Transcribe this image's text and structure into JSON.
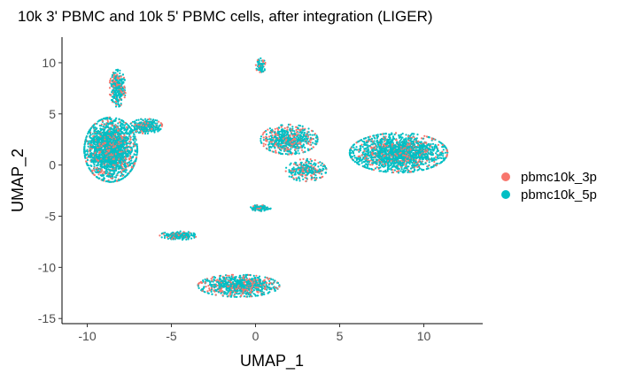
{
  "chart_data": {
    "type": "scatter",
    "title": "10k 3' PBMC and 10k 5' PBMC cells, after integration (LIGER)",
    "xlabel": "UMAP_1",
    "ylabel": "UMAP_2",
    "xlim": [
      -11.5,
      13.5
    ],
    "ylim": [
      -15.5,
      12.5
    ],
    "xticks": [
      -10,
      -5,
      0,
      5,
      10
    ],
    "yticks": [
      -15,
      -10,
      -5,
      0,
      5,
      10
    ],
    "grid": false,
    "legend_position": "right",
    "series": [
      {
        "name": "pbmc10k_3p",
        "color": "#F8766D"
      },
      {
        "name": "pbmc10k_5p",
        "color": "#00BFC4"
      }
    ],
    "clusters": [
      {
        "label": "large-left",
        "center": [
          -8.6,
          1.5
        ],
        "spread": [
          1.3,
          2.6
        ],
        "weight": 0.3,
        "share_3p": 0.2
      },
      {
        "label": "left-top-arm",
        "center": [
          -8.2,
          7.5
        ],
        "spread": [
          0.4,
          1.5
        ],
        "weight": 0.04,
        "share_3p": 0.3
      },
      {
        "label": "left-shoulder",
        "center": [
          -6.5,
          3.8
        ],
        "spread": [
          0.8,
          0.6
        ],
        "weight": 0.04,
        "share_3p": 0.2
      },
      {
        "label": "center-mid",
        "center": [
          2.0,
          2.5
        ],
        "spread": [
          1.4,
          1.2
        ],
        "weight": 0.09,
        "share_3p": 0.3
      },
      {
        "label": "center-lower",
        "center": [
          3.0,
          -0.5
        ],
        "spread": [
          1.0,
          0.9
        ],
        "weight": 0.04,
        "share_3p": 0.3
      },
      {
        "label": "right-main",
        "center": [
          8.5,
          1.2
        ],
        "spread": [
          2.4,
          1.6
        ],
        "weight": 0.26,
        "share_3p": 0.2
      },
      {
        "label": "small-island",
        "center": [
          0.3,
          -4.2
        ],
        "spread": [
          0.5,
          0.25
        ],
        "weight": 0.02,
        "share_3p": 0.2
      },
      {
        "label": "left-bottom",
        "center": [
          -4.6,
          -6.9
        ],
        "spread": [
          0.9,
          0.35
        ],
        "weight": 0.03,
        "share_3p": 0.2
      },
      {
        "label": "bottom",
        "center": [
          -1.0,
          -11.8
        ],
        "spread": [
          2.0,
          0.9
        ],
        "weight": 0.12,
        "share_3p": 0.3
      },
      {
        "label": "top-small",
        "center": [
          0.3,
          9.7
        ],
        "spread": [
          0.25,
          0.6
        ],
        "weight": 0.01,
        "share_3p": 0.2
      }
    ],
    "approx_point_count": 7000
  }
}
